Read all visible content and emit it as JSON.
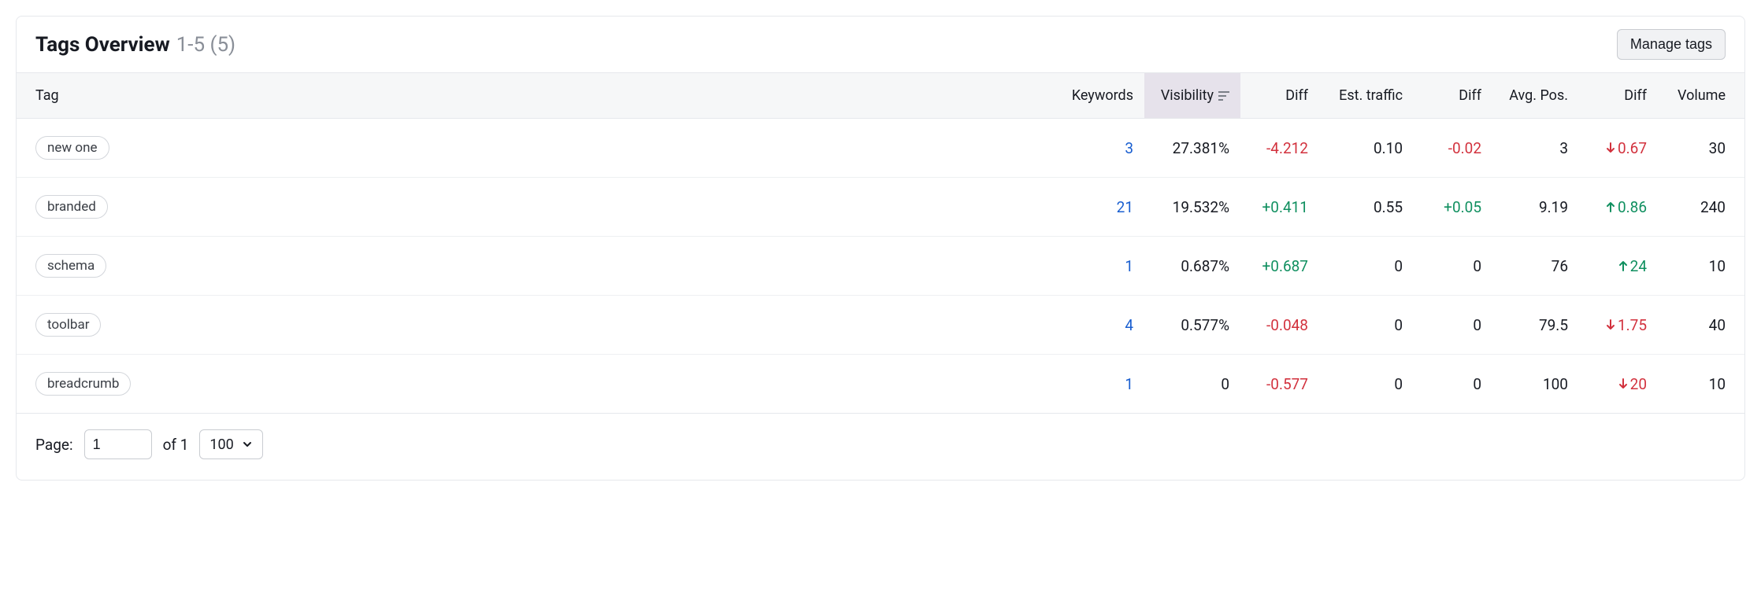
{
  "colors": {
    "text": "#171a22",
    "muted": "#8a8f98",
    "link": "#1a5fd0",
    "positive": "#0f8f5f",
    "negative": "#d2313d",
    "border": "#e6e8ec",
    "row_border": "#eef0f2",
    "thead_bg": "#f6f7f8",
    "sorted_bg": "#e6e2eb",
    "btn_bg": "#f1f2f4",
    "btn_border": "#c9ccd1",
    "pill_border": "#d3d6db"
  },
  "header": {
    "title": "Tags Overview",
    "range": "1-5 (5)",
    "manage_label": "Manage tags"
  },
  "columns": {
    "tag": "Tag",
    "keywords": "Keywords",
    "visibility": "Visibility",
    "diff_vis": "Diff",
    "est_traffic": "Est. traffic",
    "diff_traffic": "Diff",
    "avg_pos": "Avg. Pos.",
    "diff_pos": "Diff",
    "volume": "Volume"
  },
  "sorted_column": "visibility",
  "rows": [
    {
      "tag": "new one",
      "keywords": "3",
      "visibility": "27.381%",
      "diff_vis": {
        "text": "-4.212",
        "dir": "neg"
      },
      "est_traffic": "0.10",
      "diff_traffic": {
        "text": "-0.02",
        "dir": "neg"
      },
      "avg_pos": "3",
      "diff_pos": {
        "text": "0.67",
        "dir": "neg",
        "arrow": "down"
      },
      "volume": "30"
    },
    {
      "tag": "branded",
      "keywords": "21",
      "visibility": "19.532%",
      "diff_vis": {
        "text": "+0.411",
        "dir": "pos"
      },
      "est_traffic": "0.55",
      "diff_traffic": {
        "text": "+0.05",
        "dir": "pos"
      },
      "avg_pos": "9.19",
      "diff_pos": {
        "text": "0.86",
        "dir": "pos",
        "arrow": "up"
      },
      "volume": "240"
    },
    {
      "tag": "schema",
      "keywords": "1",
      "visibility": "0.687%",
      "diff_vis": {
        "text": "+0.687",
        "dir": "pos"
      },
      "est_traffic": "0",
      "diff_traffic": {
        "text": "0",
        "dir": "none"
      },
      "avg_pos": "76",
      "diff_pos": {
        "text": "24",
        "dir": "pos",
        "arrow": "up"
      },
      "volume": "10"
    },
    {
      "tag": "toolbar",
      "keywords": "4",
      "visibility": "0.577%",
      "diff_vis": {
        "text": "-0.048",
        "dir": "neg"
      },
      "est_traffic": "0",
      "diff_traffic": {
        "text": "0",
        "dir": "none"
      },
      "avg_pos": "79.5",
      "diff_pos": {
        "text": "1.75",
        "dir": "neg",
        "arrow": "down"
      },
      "volume": "40"
    },
    {
      "tag": "breadcrumb",
      "keywords": "1",
      "visibility": "0",
      "diff_vis": {
        "text": "-0.577",
        "dir": "neg"
      },
      "est_traffic": "0",
      "diff_traffic": {
        "text": "0",
        "dir": "none"
      },
      "avg_pos": "100",
      "diff_pos": {
        "text": "20",
        "dir": "neg",
        "arrow": "down"
      },
      "volume": "10"
    }
  ],
  "footer": {
    "page_label": "Page:",
    "page_value": "1",
    "of_label": "of 1",
    "page_size": "100"
  }
}
